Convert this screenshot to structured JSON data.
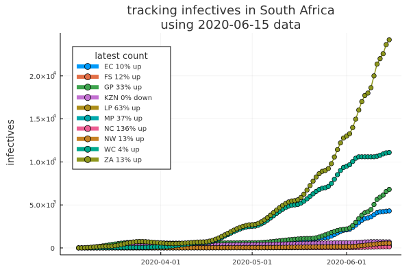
{
  "chart_data": {
    "type": "line",
    "title_lines": [
      "tracking infectives in South Africa",
      "using 2020-06-15 data"
    ],
    "xlabel": "",
    "ylabel": "infectives",
    "x_start": "2020-03-05",
    "x_end": "2020-06-15",
    "xlim": [
      "2020-02-28",
      "2020-06-19"
    ],
    "ylim": [
      -800,
      25000
    ],
    "x_ticks": [
      {
        "date": "2020-04-01",
        "label": "2020-04-01"
      },
      {
        "date": "2020-05-01",
        "label": "2020-05-01"
      },
      {
        "date": "2020-06-01",
        "label": "2020-06-01"
      }
    ],
    "y_ticks": [
      {
        "value": 0,
        "label": "0",
        "exp": ""
      },
      {
        "value": 5000,
        "label": "5.0×10",
        "exp": "3"
      },
      {
        "value": 10000,
        "label": "1.0×10",
        "exp": "4"
      },
      {
        "value": 15000,
        "label": "1.5×10",
        "exp": "4"
      },
      {
        "value": 20000,
        "label": "2.0×10",
        "exp": "4"
      }
    ],
    "grid": true,
    "legend": {
      "title": "latest count",
      "placement": "top-left"
    },
    "series": [
      {
        "name": "EC 10% up",
        "color": "#009AFA",
        "keypoints": [
          [
            "2020-03-05",
            0
          ],
          [
            "2020-04-01",
            0
          ],
          [
            "2020-04-20",
            120
          ],
          [
            "2020-05-01",
            350
          ],
          [
            "2020-05-15",
            650
          ],
          [
            "2020-05-25",
            1200
          ],
          [
            "2020-06-01",
            2100
          ],
          [
            "2020-06-08",
            3500
          ],
          [
            "2020-06-12",
            4200
          ],
          [
            "2020-06-15",
            4300
          ]
        ]
      },
      {
        "name": "FS 12% up",
        "color": "#E36F47",
        "keypoints": [
          [
            "2020-03-05",
            0
          ],
          [
            "2020-03-20",
            80
          ],
          [
            "2020-04-01",
            60
          ],
          [
            "2020-05-01",
            100
          ],
          [
            "2020-06-01",
            250
          ],
          [
            "2020-06-15",
            400
          ]
        ]
      },
      {
        "name": "GP 33% up",
        "color": "#3EA44E",
        "keypoints": [
          [
            "2020-03-05",
            0
          ],
          [
            "2020-03-25",
            700
          ],
          [
            "2020-04-05",
            550
          ],
          [
            "2020-05-01",
            600
          ],
          [
            "2020-05-20",
            1100
          ],
          [
            "2020-06-01",
            2200
          ],
          [
            "2020-06-08",
            4200
          ],
          [
            "2020-06-12",
            5900
          ],
          [
            "2020-06-15",
            6800
          ]
        ]
      },
      {
        "name": "KZN 0% down",
        "color": "#C371D2",
        "keypoints": [
          [
            "2020-03-05",
            0
          ],
          [
            "2020-03-25",
            250
          ],
          [
            "2020-04-10",
            300
          ],
          [
            "2020-05-01",
            400
          ],
          [
            "2020-06-01",
            600
          ],
          [
            "2020-06-10",
            720
          ],
          [
            "2020-06-15",
            700
          ]
        ]
      },
      {
        "name": "LP 63% up",
        "color": "#AC8D18",
        "keypoints": [
          [
            "2020-03-05",
            0
          ],
          [
            "2020-04-01",
            10
          ],
          [
            "2020-05-01",
            40
          ],
          [
            "2020-06-01",
            100
          ],
          [
            "2020-06-15",
            250
          ]
        ]
      },
      {
        "name": "MP 37% up",
        "color": "#00A9AD",
        "keypoints": [
          [
            "2020-03-05",
            0
          ],
          [
            "2020-04-01",
            10
          ],
          [
            "2020-05-01",
            30
          ],
          [
            "2020-06-01",
            70
          ],
          [
            "2020-06-15",
            180
          ]
        ]
      },
      {
        "name": "NC 136% up",
        "color": "#ED5E93",
        "keypoints": [
          [
            "2020-03-05",
            0
          ],
          [
            "2020-04-01",
            5
          ],
          [
            "2020-05-01",
            20
          ],
          [
            "2020-06-01",
            40
          ],
          [
            "2020-06-15",
            120
          ]
        ]
      },
      {
        "name": "NW 13% up",
        "color": "#C68225",
        "keypoints": [
          [
            "2020-03-05",
            0
          ],
          [
            "2020-04-01",
            10
          ],
          [
            "2020-05-01",
            40
          ],
          [
            "2020-06-01",
            150
          ],
          [
            "2020-06-15",
            550
          ]
        ]
      },
      {
        "name": "WC 4% up",
        "color": "#00A98D",
        "keypoints": [
          [
            "2020-03-05",
            0
          ],
          [
            "2020-03-25",
            50
          ],
          [
            "2020-04-01",
            120
          ],
          [
            "2020-04-15",
            600
          ],
          [
            "2020-05-01",
            2500
          ],
          [
            "2020-05-15",
            5000
          ],
          [
            "2020-05-25",
            7000
          ],
          [
            "2020-06-01",
            9500
          ],
          [
            "2020-06-05",
            10600
          ],
          [
            "2020-06-10",
            10600
          ],
          [
            "2020-06-15",
            11100
          ]
        ]
      },
      {
        "name": "ZA 13% up",
        "color": "#8E971D",
        "keypoints": [
          [
            "2020-03-05",
            0
          ],
          [
            "2020-03-15",
            200
          ],
          [
            "2020-03-25",
            750
          ],
          [
            "2020-04-05",
            500
          ],
          [
            "2020-04-15",
            700
          ],
          [
            "2020-05-01",
            2700
          ],
          [
            "2020-05-15",
            5500
          ],
          [
            "2020-05-25",
            9000
          ],
          [
            "2020-06-01",
            13000
          ],
          [
            "2020-06-08",
            18000
          ],
          [
            "2020-06-12",
            22000
          ],
          [
            "2020-06-15",
            24200
          ]
        ]
      }
    ]
  }
}
